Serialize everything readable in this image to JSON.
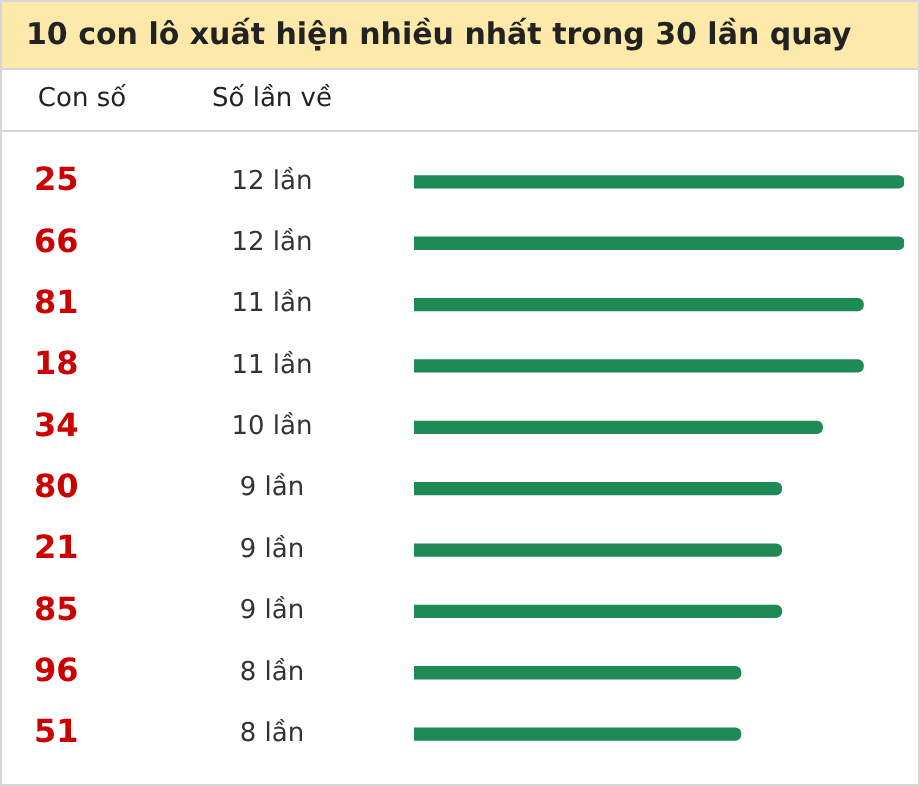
{
  "chart_data": {
    "type": "bar",
    "orientation": "horizontal",
    "title": "10 con lô xuất hiện nhiều nhất trong 30 lần quay",
    "annotations": [
      "Con số",
      "Số lần về"
    ],
    "categories": [
      "25",
      "66",
      "81",
      "18",
      "34",
      "80",
      "21",
      "85",
      "96",
      "51"
    ],
    "values": [
      12,
      12,
      11,
      11,
      10,
      9,
      9,
      9,
      8,
      8
    ],
    "value_labels": [
      "12 lần",
      "12 lần",
      "11 lần",
      "11 lần",
      "10 lần",
      "9 lần",
      "9 lần",
      "9 lần",
      "8 lần",
      "8 lần"
    ],
    "color": "#1e8a55",
    "xlim": [
      0,
      12
    ],
    "grid": false,
    "legend": false
  }
}
